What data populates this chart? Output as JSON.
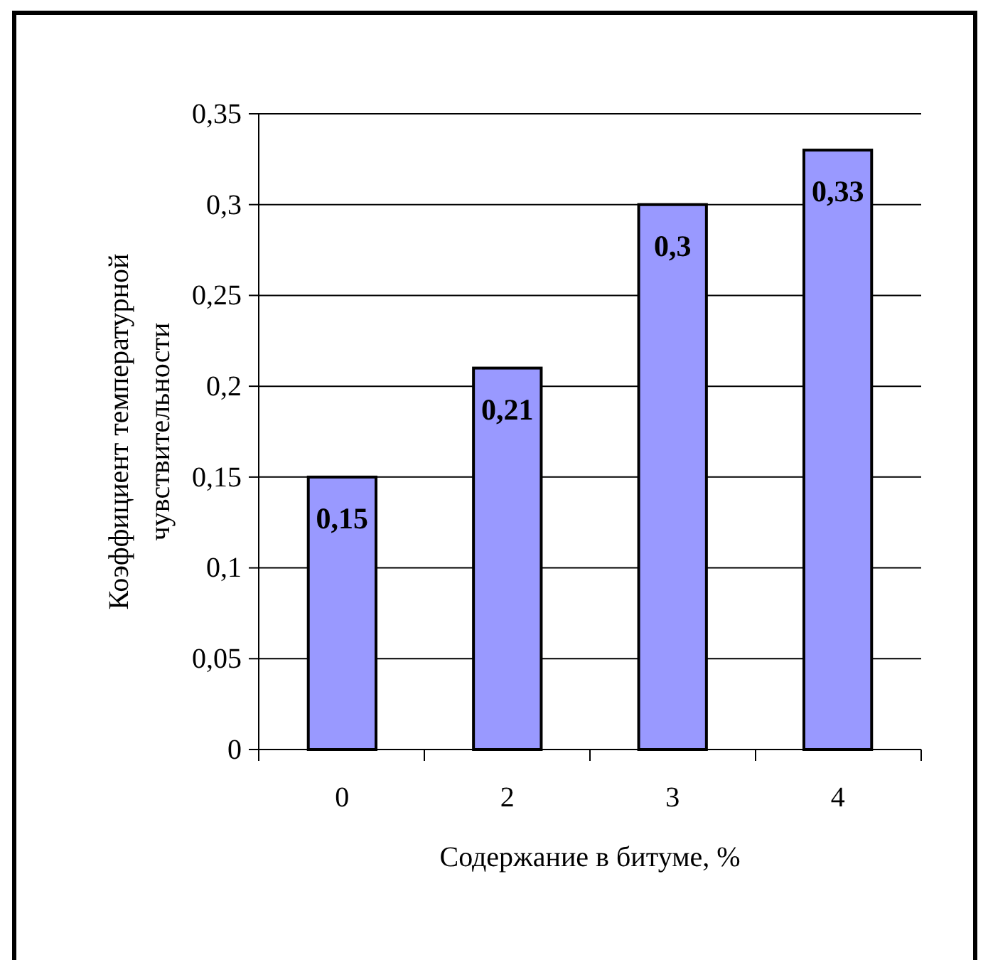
{
  "chart_data": {
    "type": "bar",
    "xlabel": "Содержание в битуме, %",
    "ylabel": "Коэффициент температурной чувствительности",
    "categories": [
      "0",
      "2",
      "3",
      "4"
    ],
    "values": [
      0.15,
      0.21,
      0.3,
      0.33
    ],
    "value_labels": [
      "0,15",
      "0,21",
      "0,3",
      "0,33"
    ],
    "color": "#9999ff",
    "ylim": [
      0,
      0.35
    ],
    "yticks": [
      0,
      {
        "value": 0.05,
        "label": "0,05"
      },
      {
        "value": 0.1,
        "label": "0,1"
      },
      {
        "value": 0.15,
        "label": "0,15"
      },
      {
        "value": 0.2,
        "label": "0,2"
      },
      {
        "value": 0.25,
        "label": "0,25"
      },
      {
        "value": 0.3,
        "label": "0,3"
      },
      {
        "value": 0.35,
        "label": "0,35"
      }
    ],
    "grid": "y"
  }
}
